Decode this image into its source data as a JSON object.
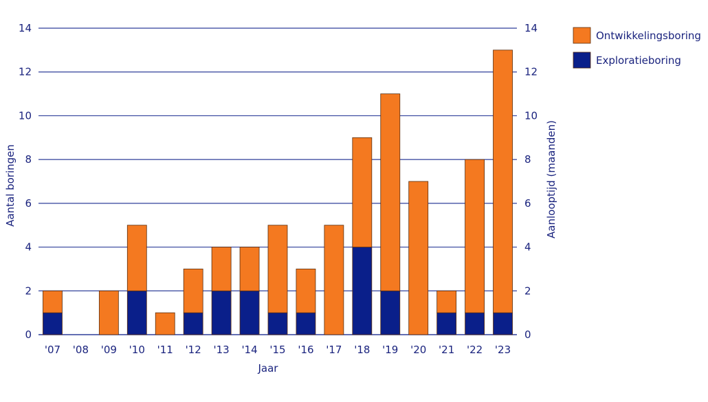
{
  "chart_data": {
    "type": "bar",
    "stacked": true,
    "categories": [
      "'07",
      "'08",
      "'09",
      "'10",
      "'11",
      "'12",
      "'13",
      "'14",
      "'15",
      "'16",
      "'17",
      "'18",
      "'19",
      "'20",
      "'21",
      "'22",
      "'23"
    ],
    "series": [
      {
        "name": "Exploratieboring",
        "color": "#0a1f8a",
        "values": [
          1,
          0,
          0,
          2,
          0,
          1,
          2,
          2,
          1,
          1,
          0,
          4,
          2,
          0,
          1,
          1,
          1
        ]
      },
      {
        "name": "Ontwikkelingsboring",
        "color": "#f47920",
        "values": [
          1,
          0,
          2,
          3,
          1,
          2,
          2,
          2,
          4,
          2,
          5,
          5,
          9,
          7,
          1,
          7,
          12
        ]
      }
    ],
    "legend_order": [
      "Ontwikkelingsboring",
      "Exploratieboring"
    ],
    "xlabel": "Jaar",
    "ylabel": "Aantal boringen",
    "ylabel_right": "Aanlooptijd (maanden)",
    "ylim": [
      0,
      14
    ],
    "yticks": [
      0,
      2,
      4,
      6,
      8,
      10,
      12,
      14
    ],
    "grid": true,
    "legend_position": "top-right"
  }
}
